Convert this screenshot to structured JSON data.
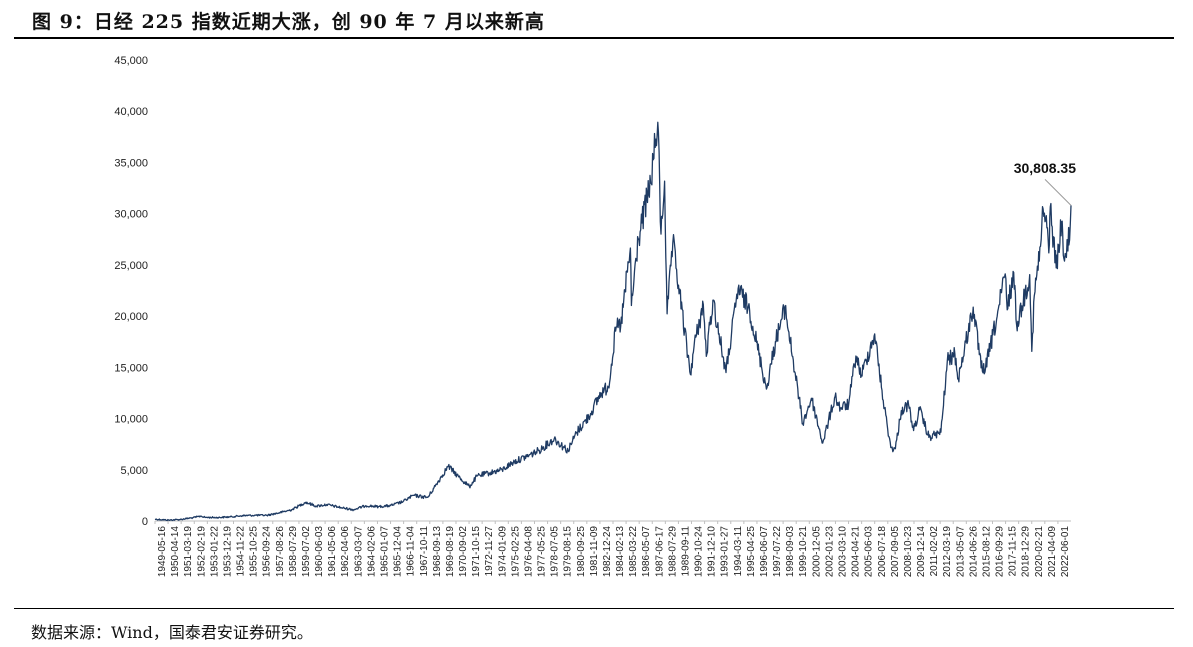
{
  "figure": {
    "title": "图 9：日经 225 指数近期大涨，创 90 年 7 月以来新高",
    "source": "数据来源：Wind，国泰君安证券研究。"
  },
  "chart_data": {
    "type": "line",
    "series_color": "#1f3b63",
    "ylim": [
      0,
      45000
    ],
    "yticks": [
      0,
      5000,
      10000,
      15000,
      20000,
      25000,
      30000,
      35000,
      40000,
      45000
    ],
    "ytick_labels": [
      "0",
      "5,000",
      "10,000",
      "15,000",
      "20,000",
      "25,000",
      "30,000",
      "35,000",
      "40,000",
      "45,000"
    ],
    "xlim": [
      "1949-05-16",
      "2023-05-19"
    ],
    "xtick_labels": [
      "1949-05-16",
      "1950-04-14",
      "1951-03-19",
      "1952-02-19",
      "1953-01-22",
      "1953-12-19",
      "1954-11-22",
      "1955-10-25",
      "1956-09-24",
      "1957-08-26",
      "1958-07-29",
      "1959-07-02",
      "1960-06-03",
      "1961-05-06",
      "1962-04-06",
      "1963-03-07",
      "1964-02-06",
      "1965-01-07",
      "1965-12-04",
      "1966-11-04",
      "1967-10-11",
      "1968-09-13",
      "1969-08-19",
      "1970-09-02",
      "1971-10-15",
      "1972-11-27",
      "1974-01-09",
      "1975-02-25",
      "1976-04-08",
      "1977-05-25",
      "1978-07-05",
      "1979-08-15",
      "1980-09-25",
      "1981-11-09",
      "1982-12-24",
      "1984-02-13",
      "1985-03-22",
      "1986-05-07",
      "1987-06-17",
      "1988-07-29",
      "1989-09-11",
      "1990-10-24",
      "1991-12-10",
      "1993-01-27",
      "1994-03-11",
      "1995-04-25",
      "1996-06-07",
      "1997-07-22",
      "1998-09-03",
      "1999-10-21",
      "2000-12-05",
      "2002-01-23",
      "2003-03-10",
      "2004-04-21",
      "2005-06-03",
      "2006-07-18",
      "2007-09-05",
      "2008-10-23",
      "2009-12-14",
      "2011-02-02",
      "2012-03-19",
      "2013-05-07",
      "2014-06-26",
      "2015-08-12",
      "2016-09-29",
      "2017-11-15",
      "2018-12-29",
      "2020-02-21",
      "2021-04-09",
      "2022-06-01"
    ],
    "points": [
      [
        "1949-05-16",
        176
      ],
      [
        "1950-07-06",
        85
      ],
      [
        "1951-06-01",
        150
      ],
      [
        "1952-06-01",
        320
      ],
      [
        "1953-02-04",
        474
      ],
      [
        "1953-06-01",
        350
      ],
      [
        "1954-06-01",
        340
      ],
      [
        "1955-06-01",
        400
      ],
      [
        "1956-06-01",
        520
      ],
      [
        "1957-06-01",
        560
      ],
      [
        "1958-06-01",
        560
      ],
      [
        "1959-06-01",
        800
      ],
      [
        "1960-06-01",
        1100
      ],
      [
        "1961-07-18",
        1829
      ],
      [
        "1962-06-01",
        1450
      ],
      [
        "1963-04-01",
        1600
      ],
      [
        "1964-06-01",
        1300
      ],
      [
        "1965-06-01",
        1100
      ],
      [
        "1966-06-01",
        1500
      ],
      [
        "1967-06-01",
        1400
      ],
      [
        "1968-06-01",
        1500
      ],
      [
        "1969-06-01",
        1900
      ],
      [
        "1970-04-01",
        2500
      ],
      [
        "1971-06-01",
        2300
      ],
      [
        "1973-01-24",
        5359
      ],
      [
        "1973-12-01",
        4300
      ],
      [
        "1974-10-09",
        3355
      ],
      [
        "1975-06-01",
        4400
      ],
      [
        "1976-06-01",
        4700
      ],
      [
        "1977-06-01",
        5000
      ],
      [
        "1978-06-01",
        5800
      ],
      [
        "1979-06-01",
        6300
      ],
      [
        "1980-06-01",
        6900
      ],
      [
        "1981-08-17",
        8019
      ],
      [
        "1982-10-01",
        6850
      ],
      [
        "1983-06-01",
        8600
      ],
      [
        "1984-06-01",
        10200
      ],
      [
        "1985-06-01",
        12500
      ],
      [
        "1986-01-01",
        13100
      ],
      [
        "1986-08-20",
        18936
      ],
      [
        "1987-01-01",
        19000
      ],
      [
        "1987-10-14",
        26646
      ],
      [
        "1987-11-11",
        21036
      ],
      [
        "1988-06-01",
        27500
      ],
      [
        "1989-06-01",
        33000
      ],
      [
        "1989-12-29",
        38916
      ],
      [
        "1990-04-02",
        28002
      ],
      [
        "1990-07-17",
        33172
      ],
      [
        "1990-10-01",
        20222
      ],
      [
        "1991-03-18",
        27146
      ],
      [
        "1992-08-18",
        14309
      ],
      [
        "1992-12-01",
        17000
      ],
      [
        "1993-09-03",
        21148
      ],
      [
        "1993-11-29",
        16078
      ],
      [
        "1994-06-13",
        21552
      ],
      [
        "1995-07-03",
        14485
      ],
      [
        "1996-06-26",
        22666
      ],
      [
        "1997-06-01",
        20600
      ],
      [
        "1998-10-09",
        12880
      ],
      [
        "1999-07-01",
        17500
      ],
      [
        "2000-04-12",
        20833
      ],
      [
        "2001-09-17",
        9504
      ],
      [
        "2002-05-28",
        11979
      ],
      [
        "2003-04-28",
        7607
      ],
      [
        "2004-04-26",
        12163
      ],
      [
        "2004-10-01",
        11000
      ],
      [
        "2005-06-01",
        11400
      ],
      [
        "2005-12-30",
        16111
      ],
      [
        "2006-06-13",
        14218
      ],
      [
        "2007-07-09",
        18262
      ],
      [
        "2008-03-17",
        11787
      ],
      [
        "2008-10-27",
        7163
      ],
      [
        "2009-03-10",
        7055
      ],
      [
        "2009-08-31",
        10767
      ],
      [
        "2010-04-05",
        11339
      ],
      [
        "2010-08-31",
        8824
      ],
      [
        "2011-02-21",
        10857
      ],
      [
        "2011-11-25",
        8160
      ],
      [
        "2012-11-14",
        8664
      ],
      [
        "2013-05-22",
        15627
      ],
      [
        "2013-12-30",
        16291
      ],
      [
        "2014-04-11",
        13910
      ],
      [
        "2015-06-24",
        20868
      ],
      [
        "2016-02-12",
        14953
      ],
      [
        "2016-06-24",
        14952
      ],
      [
        "2017-06-01",
        20000
      ],
      [
        "2018-01-23",
        24124
      ],
      [
        "2018-03-23",
        20617
      ],
      [
        "2018-10-02",
        24270
      ],
      [
        "2018-12-25",
        19155
      ],
      [
        "2019-06-01",
        21000
      ],
      [
        "2020-01-17",
        24041
      ],
      [
        "2020-03-19",
        16552
      ],
      [
        "2020-06-01",
        22000
      ],
      [
        "2020-12-01",
        26800
      ],
      [
        "2021-02-16",
        30467
      ],
      [
        "2021-08-20",
        27013
      ],
      [
        "2021-09-14",
        30670
      ],
      [
        "2022-03-08",
        24717
      ],
      [
        "2022-08-17",
        29222
      ],
      [
        "2022-10-03",
        25937
      ],
      [
        "2023-01-04",
        25717
      ],
      [
        "2023-03-09",
        28623
      ],
      [
        "2023-03-17",
        26945
      ],
      [
        "2023-05-19",
        30808.35
      ]
    ],
    "annotation": {
      "text": "30,808.35",
      "date": "2023-05-19",
      "value": 30808.35
    }
  }
}
